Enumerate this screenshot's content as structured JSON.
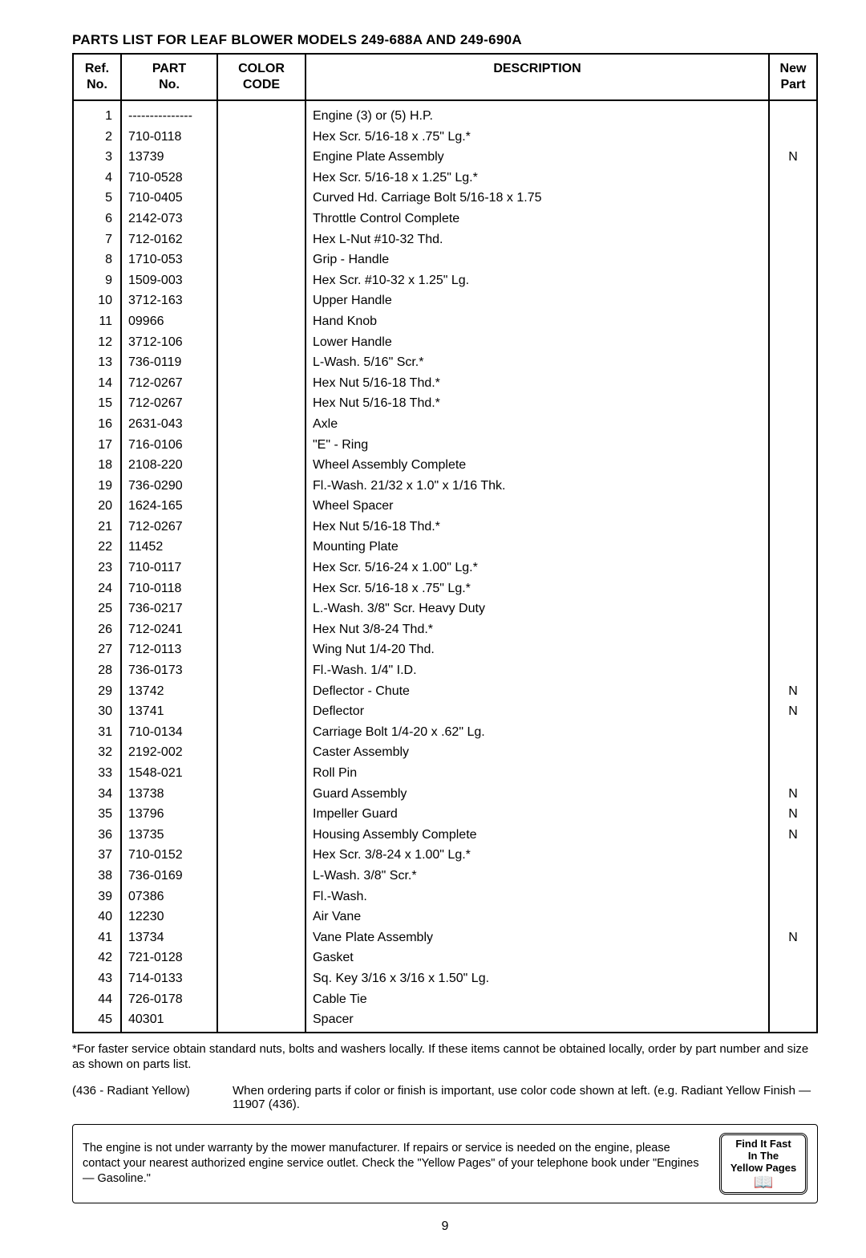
{
  "title": "PARTS LIST FOR LEAF BLOWER MODELS 249-688A AND 249-690A",
  "headers": {
    "ref": "Ref.\nNo.",
    "part": "PART\nNo.",
    "color": "COLOR\nCODE",
    "desc": "DESCRIPTION",
    "new": "New\nPart"
  },
  "rows": [
    {
      "ref": "1",
      "part": "---------------",
      "color": "",
      "desc": "Engine (3) or (5) H.P.",
      "new": ""
    },
    {
      "ref": "2",
      "part": "710-0118",
      "color": "",
      "desc": "Hex Scr. 5/16-18 x .75\" Lg.*",
      "new": ""
    },
    {
      "ref": "3",
      "part": "13739",
      "color": "",
      "desc": "Engine Plate Assembly",
      "new": "N"
    },
    {
      "ref": "4",
      "part": "710-0528",
      "color": "",
      "desc": "Hex Scr. 5/16-18 x 1.25\" Lg.*",
      "new": ""
    },
    {
      "ref": "5",
      "part": "710-0405",
      "color": "",
      "desc": "Curved Hd. Carriage Bolt 5/16-18 x 1.75",
      "new": ""
    },
    {
      "ref": "6",
      "part": "2142-073",
      "color": "",
      "desc": "Throttle Control Complete",
      "new": ""
    },
    {
      "ref": "7",
      "part": "712-0162",
      "color": "",
      "desc": "Hex L-Nut #10-32 Thd.",
      "new": ""
    },
    {
      "ref": "8",
      "part": "1710-053",
      "color": "",
      "desc": "Grip - Handle",
      "new": ""
    },
    {
      "ref": "9",
      "part": "1509-003",
      "color": "",
      "desc": "Hex Scr. #10-32 x 1.25\" Lg.",
      "new": ""
    },
    {
      "ref": "10",
      "part": "3712-163",
      "color": "",
      "desc": "Upper Handle",
      "new": ""
    },
    {
      "ref": "11",
      "part": "09966",
      "color": "",
      "desc": "Hand Knob",
      "new": ""
    },
    {
      "ref": "12",
      "part": "3712-106",
      "color": "",
      "desc": "Lower Handle",
      "new": ""
    },
    {
      "ref": "13",
      "part": "736-0119",
      "color": "",
      "desc": "L-Wash. 5/16\" Scr.*",
      "new": ""
    },
    {
      "ref": "14",
      "part": "712-0267",
      "color": "",
      "desc": "Hex Nut 5/16-18 Thd.*",
      "new": ""
    },
    {
      "ref": "15",
      "part": "712-0267",
      "color": "",
      "desc": "Hex Nut 5/16-18 Thd.*",
      "new": ""
    },
    {
      "ref": "16",
      "part": "2631-043",
      "color": "",
      "desc": "Axle",
      "new": ""
    },
    {
      "ref": "17",
      "part": "716-0106",
      "color": "",
      "desc": "\"E\" - Ring",
      "new": ""
    },
    {
      "ref": "18",
      "part": "2108-220",
      "color": "",
      "desc": "Wheel Assembly Complete",
      "new": ""
    },
    {
      "ref": "19",
      "part": "736-0290",
      "color": "",
      "desc": "Fl.-Wash. 21/32 x 1.0\" x 1/16 Thk.",
      "new": ""
    },
    {
      "ref": "20",
      "part": "1624-165",
      "color": "",
      "desc": "Wheel Spacer",
      "new": ""
    },
    {
      "ref": "21",
      "part": "712-0267",
      "color": "",
      "desc": "Hex Nut 5/16-18 Thd.*",
      "new": ""
    },
    {
      "ref": "22",
      "part": "11452",
      "color": "",
      "desc": "Mounting Plate",
      "new": ""
    },
    {
      "ref": "23",
      "part": "710-0117",
      "color": "",
      "desc": "Hex Scr. 5/16-24 x 1.00\" Lg.*",
      "new": ""
    },
    {
      "ref": "24",
      "part": "710-0118",
      "color": "",
      "desc": "Hex Scr. 5/16-18 x .75\" Lg.*",
      "new": ""
    },
    {
      "ref": "25",
      "part": "736-0217",
      "color": "",
      "desc": "L.-Wash. 3/8\" Scr. Heavy Duty",
      "new": ""
    },
    {
      "ref": "26",
      "part": "712-0241",
      "color": "",
      "desc": "Hex Nut 3/8-24 Thd.*",
      "new": ""
    },
    {
      "ref": "27",
      "part": "712-0113",
      "color": "",
      "desc": "Wing Nut 1/4-20 Thd.",
      "new": ""
    },
    {
      "ref": "28",
      "part": "736-0173",
      "color": "",
      "desc": "Fl.-Wash. 1/4\" I.D.",
      "new": ""
    },
    {
      "ref": "29",
      "part": "13742",
      "color": "",
      "desc": "Deflector - Chute",
      "new": "N"
    },
    {
      "ref": "30",
      "part": "13741",
      "color": "",
      "desc": "Deflector",
      "new": "N"
    },
    {
      "ref": "31",
      "part": "710-0134",
      "color": "",
      "desc": "Carriage Bolt 1/4-20 x .62\" Lg.",
      "new": ""
    },
    {
      "ref": "32",
      "part": "2192-002",
      "color": "",
      "desc": "Caster Assembly",
      "new": ""
    },
    {
      "ref": "33",
      "part": "1548-021",
      "color": "",
      "desc": "Roll Pin",
      "new": ""
    },
    {
      "ref": "34",
      "part": "13738",
      "color": "",
      "desc": "Guard Assembly",
      "new": "N"
    },
    {
      "ref": "35",
      "part": "13796",
      "color": "",
      "desc": "Impeller Guard",
      "new": "N"
    },
    {
      "ref": "36",
      "part": "13735",
      "color": "",
      "desc": "Housing Assembly Complete",
      "new": "N"
    },
    {
      "ref": "37",
      "part": "710-0152",
      "color": "",
      "desc": "Hex Scr. 3/8-24 x 1.00\" Lg.*",
      "new": ""
    },
    {
      "ref": "38",
      "part": "736-0169",
      "color": "",
      "desc": "L-Wash. 3/8\" Scr.*",
      "new": ""
    },
    {
      "ref": "39",
      "part": "07386",
      "color": "",
      "desc": "Fl.-Wash.",
      "new": ""
    },
    {
      "ref": "40",
      "part": "12230",
      "color": "",
      "desc": "Air Vane",
      "new": ""
    },
    {
      "ref": "41",
      "part": "13734",
      "color": "",
      "desc": "Vane Plate Assembly",
      "new": "N"
    },
    {
      "ref": "42",
      "part": "721-0128",
      "color": "",
      "desc": "Gasket",
      "new": ""
    },
    {
      "ref": "43",
      "part": "714-0133",
      "color": "",
      "desc": "Sq. Key 3/16 x 3/16 x 1.50\" Lg.",
      "new": ""
    },
    {
      "ref": "44",
      "part": "726-0178",
      "color": "",
      "desc": "Cable Tie",
      "new": ""
    },
    {
      "ref": "45",
      "part": "40301",
      "color": "",
      "desc": "Spacer",
      "new": ""
    }
  ],
  "footnote": "*For faster service obtain standard nuts, bolts and washers locally. If these items cannot be obtained locally, order by part number and size as shown on parts list.",
  "color_label": "(436 - Radiant Yellow)",
  "color_text": "When ordering parts if color or finish is important, use color code shown at left. (e.g. Radiant Yellow Finish — 11907 (436).",
  "warranty": "The engine is not under warranty by the mower manufacturer. If repairs or service is needed on the engine, please contact your nearest authorized engine service outlet. Check the \"Yellow Pages\" of your telephone book under \"Engines — Gasoline.\"",
  "yp": {
    "l1": "Find It Fast",
    "l2": "In The",
    "l3": "Yellow Pages"
  },
  "pagenum": "9"
}
